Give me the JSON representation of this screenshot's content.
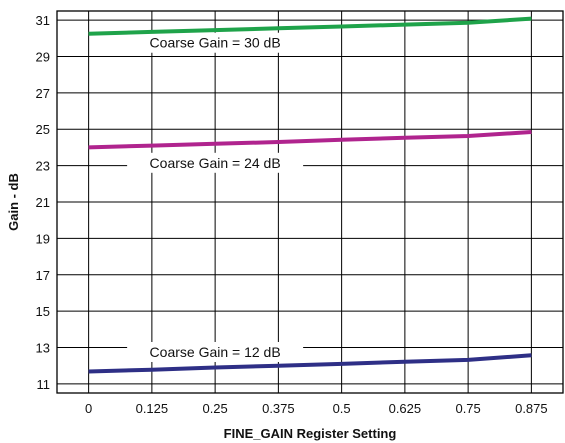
{
  "chart_data": {
    "type": "line",
    "title": "",
    "xlabel": "FINE_GAIN Register Setting",
    "ylabel": "Gain - dB",
    "x": [
      0,
      0.125,
      0.25,
      0.375,
      0.5,
      0.625,
      0.75,
      0.875
    ],
    "x_tick_labels": [
      "0",
      "0.125",
      "0.25",
      "0.375",
      "0.5",
      "0.625",
      "0.75",
      "0.875"
    ],
    "y_ticks": [
      11,
      13,
      15,
      17,
      19,
      21,
      23,
      25,
      27,
      29,
      31
    ],
    "xlim": [
      -0.0625,
      0.9375
    ],
    "ylim": [
      10.5,
      31.5
    ],
    "grid": true,
    "legend": "none",
    "series": [
      {
        "name": "Coarse Gain = 30 dB",
        "color": "#1fa34a",
        "values": [
          30.25,
          30.35,
          30.45,
          30.55,
          30.65,
          30.75,
          30.85,
          31.08
        ]
      },
      {
        "name": "Coarse Gain = 24 dB",
        "color": "#b0248e",
        "values": [
          24.0,
          24.1,
          24.2,
          24.3,
          24.42,
          24.53,
          24.63,
          24.85
        ]
      },
      {
        "name": "Coarse Gain = 12 dB",
        "color": "#2e2f86",
        "values": [
          11.68,
          11.78,
          11.9,
          12.0,
          12.1,
          12.22,
          12.32,
          12.57
        ]
      }
    ]
  }
}
